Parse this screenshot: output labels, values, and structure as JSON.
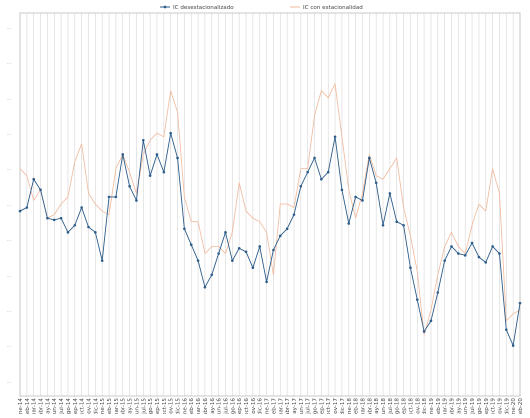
{
  "chart_data": {
    "type": "line",
    "title": "",
    "xlabel": "",
    "ylabel": "",
    "grid": "vertical",
    "legend_position": "top",
    "ylim": [
      0,
      10
    ],
    "yticks": [
      "...",
      "...",
      "...",
      "...",
      "...",
      "...",
      "...",
      "...",
      "...",
      "...",
      "..."
    ],
    "categories": [
      "ene-14",
      "feb-14",
      "mar-14",
      "abr-14",
      "may-14",
      "jun-14",
      "jul-14",
      "ago-14",
      "sep-14",
      "oct-14",
      "nov-14",
      "dic-14",
      "ene-15",
      "feb-15",
      "mar-15",
      "abr-15",
      "may-15",
      "jun-15",
      "jul-15",
      "ago-15",
      "sep-15",
      "oct-15",
      "nov-15",
      "dic-15",
      "ene-16",
      "feb-16",
      "mar-16",
      "abr-16",
      "may-16",
      "jun-16",
      "jul-16",
      "ago-16",
      "sep-16",
      "oct-16",
      "nov-16",
      "dic-16",
      "ene-17",
      "feb-17",
      "mar-17",
      "abr-17",
      "may-17",
      "jun-17",
      "jul-17",
      "ago-17",
      "sep-17",
      "oct-17",
      "nov-17",
      "dic-17",
      "ene-18",
      "feb-18",
      "mar-18",
      "abr-18",
      "may-18",
      "jun-18",
      "jul-18",
      "ago-18",
      "sep-18",
      "oct-18",
      "nov-18",
      "dic-18",
      "ene-19",
      "feb-19",
      "mar-19",
      "abr-19",
      "may-19",
      "jun-19",
      "jul-19",
      "ago-19",
      "sep-19",
      "oct-19",
      "nov-19",
      "dic-19",
      "ene-20",
      "feb-20"
    ],
    "series": [
      {
        "name": "IC desestacionalizado",
        "color": "#2e5d8a",
        "values": [
          4.8,
          4.9,
          5.7,
          5.4,
          4.6,
          4.55,
          4.6,
          4.2,
          4.4,
          4.9,
          4.35,
          4.2,
          3.4,
          5.2,
          5.2,
          6.4,
          5.5,
          5.1,
          6.8,
          5.8,
          6.4,
          5.9,
          7.0,
          6.3,
          4.3,
          3.85,
          3.4,
          2.65,
          3.0,
          3.6,
          4.2,
          3.4,
          3.75,
          3.65,
          3.2,
          3.8,
          2.8,
          3.7,
          4.1,
          4.3,
          4.7,
          5.5,
          5.9,
          6.3,
          5.7,
          5.9,
          6.9,
          5.4,
          4.45,
          5.2,
          5.1,
          6.3,
          5.6,
          4.4,
          5.3,
          4.5,
          4.4,
          3.2,
          2.3,
          1.4,
          1.7,
          2.5,
          3.4,
          3.8,
          3.6,
          3.55,
          3.9,
          3.5,
          3.35,
          3.8,
          3.6,
          1.45,
          1.0,
          2.2
        ]
      },
      {
        "name": "IC con estacionalidad",
        "color": "#f0b89b",
        "values": [
          6.0,
          5.8,
          5.1,
          5.4,
          4.6,
          4.7,
          5.0,
          5.2,
          6.2,
          6.7,
          5.3,
          5.0,
          4.8,
          4.7,
          6.0,
          6.4,
          5.9,
          5.3,
          6.4,
          6.8,
          7.0,
          6.9,
          8.2,
          7.6,
          5.2,
          4.5,
          4.5,
          3.6,
          3.8,
          3.8,
          3.6,
          4.2,
          5.6,
          4.8,
          4.6,
          4.5,
          4.2,
          3.0,
          5.0,
          5.0,
          4.9,
          6.0,
          6.0,
          7.5,
          8.2,
          8.0,
          8.4,
          6.9,
          5.4,
          4.6,
          5.3,
          6.4,
          5.8,
          5.7,
          6.0,
          6.3,
          4.9,
          4.1,
          3.1,
          1.3,
          2.0,
          3.0,
          3.8,
          4.2,
          3.8,
          3.6,
          4.4,
          5.0,
          4.8,
          6.0,
          5.3,
          1.7,
          1.9,
          2.0
        ]
      }
    ]
  }
}
